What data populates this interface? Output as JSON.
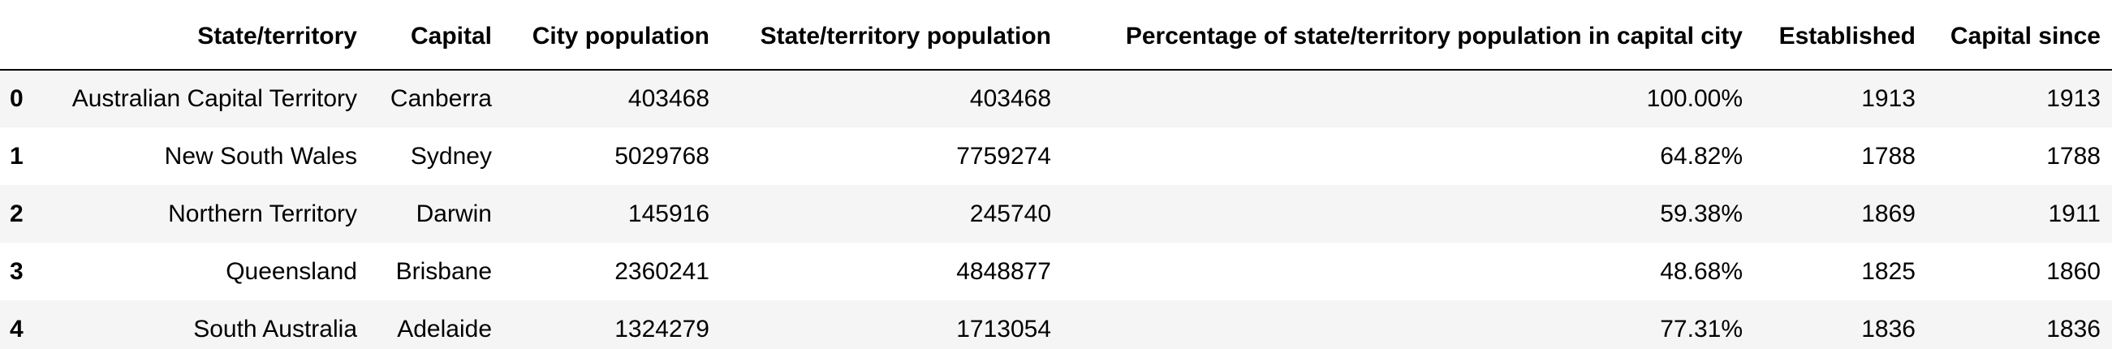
{
  "table": {
    "headers": [
      "",
      "State/territory",
      "Capital",
      "City population",
      "State/territory population",
      "Percentage of state/territory population in capital city",
      "Established",
      "Capital since"
    ],
    "rows": [
      {
        "index": "0",
        "state": "Australian Capital Territory",
        "capital": "Canberra",
        "city_population": "403468",
        "state_population": "403468",
        "percentage": "100.00%",
        "established": "1913",
        "capital_since": "1913"
      },
      {
        "index": "1",
        "state": "New South Wales",
        "capital": "Sydney",
        "city_population": "5029768",
        "state_population": "7759274",
        "percentage": "64.82%",
        "established": "1788",
        "capital_since": "1788"
      },
      {
        "index": "2",
        "state": "Northern Territory",
        "capital": "Darwin",
        "city_population": "145916",
        "state_population": "245740",
        "percentage": "59.38%",
        "established": "1869",
        "capital_since": "1911"
      },
      {
        "index": "3",
        "state": "Queensland",
        "capital": "Brisbane",
        "city_population": "2360241",
        "state_population": "4848877",
        "percentage": "48.68%",
        "established": "1825",
        "capital_since": "1860"
      },
      {
        "index": "4",
        "state": "South Australia",
        "capital": "Adelaide",
        "city_population": "1324279",
        "state_population": "1713054",
        "percentage": "77.31%",
        "established": "1836",
        "capital_since": "1836"
      }
    ]
  },
  "colors": {
    "stripe": "#f5f5f5",
    "background": "#ffffff",
    "header_rule": "#000000",
    "text": "#000000"
  }
}
